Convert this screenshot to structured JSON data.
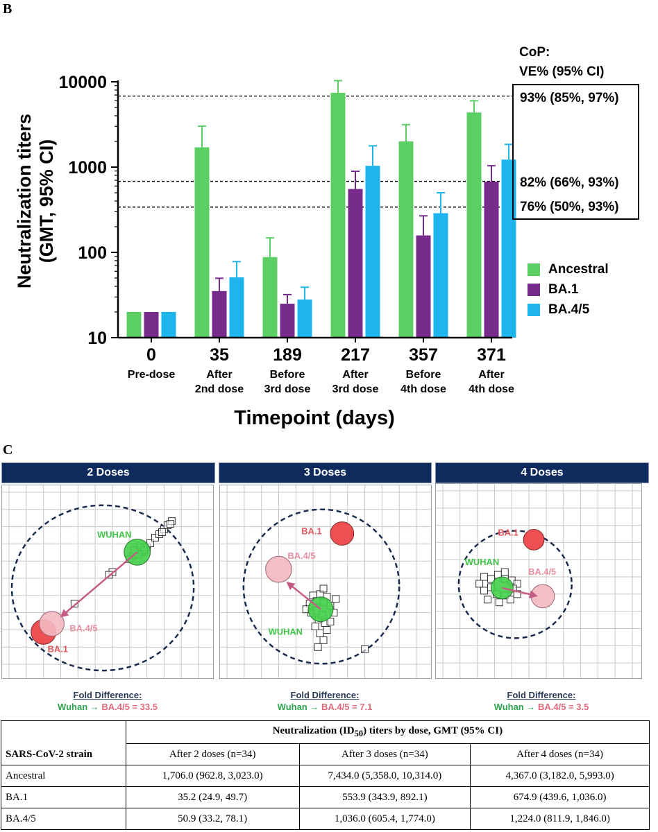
{
  "panel_b_label": "B",
  "panel_c_label": "C",
  "colors": {
    "ancestral": "#5ccf64",
    "ba1": "#762a8a",
    "ba45": "#1eb4ec",
    "map_header": "#0f2a5c"
  },
  "chart_data": {
    "type": "bar",
    "ylabel": "Neutralization titers (GMT, 95% CI)",
    "xlabel": "Timepoint (days)",
    "yscale": "log",
    "ylim": [
      10,
      10000
    ],
    "yticks": [
      "10",
      "100",
      "1000",
      "10000"
    ],
    "categories": [
      {
        "day": "0",
        "desc1": "Pre-dose",
        "desc2": ""
      },
      {
        "day": "35",
        "desc1": "After",
        "desc2": "2nd dose"
      },
      {
        "day": "189",
        "desc1": "Before",
        "desc2": "3rd dose"
      },
      {
        "day": "217",
        "desc1": "After",
        "desc2": "3rd dose"
      },
      {
        "day": "357",
        "desc1": "Before",
        "desc2": "4th dose"
      },
      {
        "day": "371",
        "desc1": "After",
        "desc2": "4th dose"
      }
    ],
    "series": [
      {
        "name": "Ancestral",
        "color": "#5ccf64",
        "values": [
          20,
          1706,
          88,
          7434,
          2000,
          4367
        ],
        "upper": [
          null,
          3023,
          148,
          10314,
          3150,
          5993
        ]
      },
      {
        "name": "BA.1",
        "color": "#762a8a",
        "values": [
          20,
          35.2,
          25,
          553.9,
          158,
          674.9
        ],
        "upper": [
          null,
          49.7,
          32,
          892.1,
          268,
          1036
        ]
      },
      {
        "name": "BA.4/5",
        "color": "#1eb4ec",
        "values": [
          20,
          50.9,
          28,
          1036,
          288,
          1224
        ],
        "upper": [
          null,
          78.1,
          39,
          1774,
          500,
          1846
        ]
      }
    ],
    "reference_lines": [
      {
        "value": 6800,
        "label": "93% (85%, 97%)"
      },
      {
        "value": 680,
        "label": "82% (66%, 93%)"
      },
      {
        "value": 340,
        "label": "76% (50%, 93%)"
      }
    ],
    "cop_title_1": "CoP:",
    "cop_title_2": "VE% (95% CI)",
    "legend_position": "right"
  },
  "maps": [
    {
      "title": "2 Doses",
      "fold_title": "Fold Difference:",
      "fold_text_a": "Wuhan → ",
      "fold_text_b": "BA.4/5 = 33.5",
      "wuhan": "WUHAN",
      "ba45": "BA.4/5",
      "ba1": "BA.1"
    },
    {
      "title": "3 Doses",
      "fold_title": "Fold Difference:",
      "fold_text_a": "Wuhan → ",
      "fold_text_b": "BA.4/5 = 7.1",
      "wuhan": "WUHAN",
      "ba45": "BA.4/5",
      "ba1": "BA.1"
    },
    {
      "title": "4 Doses",
      "fold_title": "Fold Difference:",
      "fold_text_a": "Wuhan → ",
      "fold_text_b": "BA.4/5 = 3.5",
      "wuhan": "WUHAN",
      "ba45": "BA.4/5",
      "ba1": "BA.1"
    }
  ],
  "table": {
    "super_header": "Neutralization (ID",
    "super_header_sub": "50",
    "super_header_rest": ") titers by dose, GMT (95% CI)",
    "strain_header": "SARS-CoV-2 strain",
    "columns": [
      "After 2 doses (n=34)",
      "After 3 doses (n=34)",
      "After 4 doses (n=34)"
    ],
    "rows": [
      {
        "strain": "Ancestral",
        "cells": [
          "1,706.0 (962.8, 3,023.0)",
          "7,434.0 (5,358.0, 10,314.0)",
          "4,367.0 (3,182.0, 5,993.0)"
        ]
      },
      {
        "strain": "BA.1",
        "cells": [
          "35.2 (24.9, 49.7)",
          "553.9 (343.9, 892.1)",
          "674.9 (439.6, 1,036.0)"
        ]
      },
      {
        "strain": "BA.4/5",
        "cells": [
          "50.9 (33.2, 78.1)",
          "1,036.0 (605.4, 1,774.0)",
          "1,224.0 (811.9, 1,846.0)"
        ]
      }
    ]
  }
}
